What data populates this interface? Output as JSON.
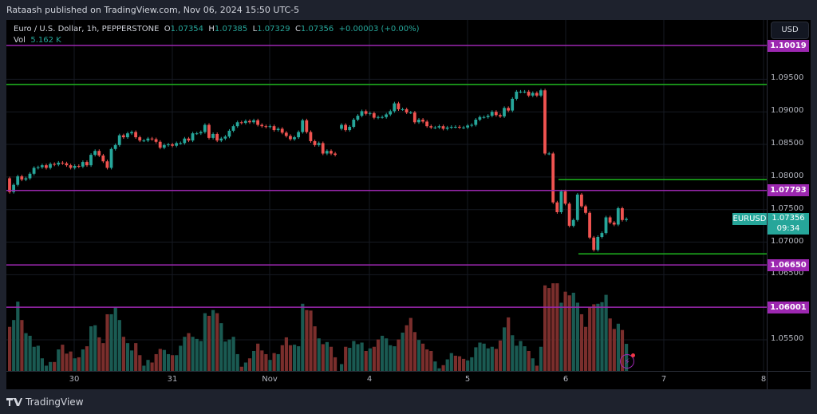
{
  "header": {
    "published": "Rataash published on TradingView.com, Nov 06, 2024 15:50 UTC-5"
  },
  "legend": {
    "symbol": "Euro / U.S. Dollar, 1h, PEPPERSTONE",
    "o_label": "O",
    "o": "1.07354",
    "h_label": "H",
    "h": "1.07385",
    "l_label": "L",
    "l": "1.07329",
    "c_label": "C",
    "c": "1.07356",
    "change": "+0.00003 (+0.00%)",
    "vol_label": "Vol",
    "vol": "5.162 K"
  },
  "currency_button": "USD",
  "price_axis": {
    "ticks": [
      "1.09500",
      "1.09000",
      "1.08500",
      "1.08000",
      "1.07500",
      "1.07000",
      "1.06500",
      "1.05500"
    ]
  },
  "levels": {
    "purple": [
      {
        "price": 1.10019,
        "label": "1.10019"
      },
      {
        "price": 1.07793,
        "label": "1.07793"
      },
      {
        "price": 1.0665,
        "label": "1.06650"
      },
      {
        "price": 1.06001,
        "label": "1.06001"
      }
    ],
    "green": [
      {
        "price": 1.0942,
        "from_date": "start"
      },
      {
        "price": 1.0796,
        "from_date": "Nov 5 late"
      },
      {
        "price": 1.0682,
        "from_date": "Nov 6"
      }
    ]
  },
  "current": {
    "symbol": "EURUSD",
    "price": "1.07356",
    "countdown": "09:34"
  },
  "time_axis": {
    "labels": [
      "30",
      "31",
      "Nov",
      "4",
      "5",
      "6",
      "7",
      "8"
    ]
  },
  "colors": {
    "up": "#26a69a",
    "down": "#ef5350",
    "vol_up": "#1a5a52",
    "vol_down": "#7a2e2c",
    "purple": "#9c27b0",
    "green": "#1fb81f",
    "tag_purple": "#9c27b0"
  },
  "footer": {
    "brand": "TradingView"
  },
  "chart_data": {
    "type": "candlestick",
    "segments": [
      {
        "first_open": 1.0798,
        "closes": [
          1.0777,
          1.0788,
          1.0801,
          1.0796,
          1.0798,
          1.0805,
          1.0814,
          1.0815,
          1.0818,
          1.0814,
          1.082,
          1.0819,
          1.0822,
          1.0821,
          1.0818,
          1.0814,
          1.0817,
          1.0816,
          1.0823,
          1.0818,
          1.0834,
          1.084,
          1.0833,
          1.0824,
          1.0814,
          1.0843,
          1.0849,
          1.0864,
          1.0861,
          1.0867,
          1.0869,
          1.0861,
          1.0856,
          1.0856,
          1.0859,
          1.0858,
          1.0854,
          1.0845,
          1.0849,
          1.085,
          1.0848,
          1.0852,
          1.0852,
          1.0859,
          1.0856,
          1.0867,
          1.0867,
          1.0869,
          1.088,
          1.086,
          1.0866,
          1.0856,
          1.0859,
          1.0862,
          1.0871,
          1.0878,
          1.0884,
          1.0883,
          1.0886,
          1.0884,
          1.0887,
          1.088,
          1.0878,
          1.0877,
          1.0878,
          1.0872,
          1.0874,
          1.0868,
          1.0863,
          1.0858,
          1.0861,
          1.0869,
          1.0887,
          1.0869,
          1.0855,
          1.0849,
          1.0852,
          1.0836,
          1.084,
          1.0836,
          1.0834
        ],
        "volumes_k": [
          8.4,
          9.7,
          13.2,
          9.7,
          7.2,
          6.7,
          4.6,
          4.8,
          2.4,
          1.0,
          1.7,
          1.7,
          4.1,
          5.0,
          3.3,
          3.7,
          2.4,
          2.6,
          4.1,
          4.7,
          8.5,
          8.7,
          6.4,
          5.3,
          10.8,
          10.8,
          12.2,
          9.7,
          6.5,
          5.3,
          3.9,
          5.3,
          3.0,
          1.0,
          2.1,
          1.6,
          3.2,
          4.2,
          4.0,
          3.2,
          3.0,
          3.0,
          4.8,
          6.5,
          7.2,
          6.5,
          6.1,
          5.7,
          11.0,
          10.5,
          11.6,
          11.0,
          9.1,
          5.6,
          6.0,
          6.5,
          3.2,
          0.8,
          1.6,
          2.4,
          3.8,
          5.2,
          3.9,
          3.2,
          2.1,
          3.4,
          3.2,
          4.9,
          6.4,
          4.9,
          5.0,
          4.7,
          12.8,
          11.6,
          11.5,
          8.5,
          6.2,
          5.1,
          5.5,
          4.6,
          2.6
        ],
        "volume_dir": "RGGRGGGGGGGRGRRRGRGRGGRRRGGGRGGRRGGRRRGGRGGGRGGGGRGRGGGGGRGRGRRRGRGRRRGGGRRRGRGRR"
      },
      {
        "first_open": 1.0874,
        "closes": [
          1.088,
          1.0872,
          1.0877,
          1.0888,
          1.0894,
          1.0901,
          1.0897,
          1.0898,
          1.0891,
          1.0892,
          1.0892,
          1.0896,
          1.0901,
          1.0913,
          1.0904,
          1.0904,
          1.0899,
          1.0899,
          1.0884,
          1.0888,
          1.0885,
          1.0878,
          1.0876,
          1.0876,
          1.0878,
          1.0874,
          1.0876,
          1.0877,
          1.0877,
          1.0876,
          1.0876,
          1.0879,
          1.088,
          1.0888,
          1.0892,
          1.0892,
          1.0894,
          1.09,
          1.0895,
          1.0893,
          1.0906,
          1.0902,
          1.092,
          1.0931,
          1.0931,
          1.0931,
          1.0925,
          1.0929,
          1.0925,
          1.0933,
          1.0836,
          1.0836,
          1.0761,
          1.0746,
          1.0778,
          1.0759,
          1.0725,
          1.0734,
          1.0773,
          1.0755,
          1.0745,
          1.0707,
          1.0688,
          1.0708,
          1.0714,
          1.0738,
          1.073,
          1.0727,
          1.0752,
          1.0734,
          1.07356
        ],
        "volumes_k": [
          1.3,
          4.6,
          4.4,
          5.7,
          5.1,
          5.4,
          3.8,
          4.3,
          4.6,
          6.0,
          6.7,
          6.2,
          4.9,
          4.7,
          6.0,
          7.3,
          8.7,
          10.1,
          7.4,
          5.9,
          5.2,
          4.1,
          3.8,
          1.8,
          0.5,
          1.1,
          2.2,
          3.4,
          2.9,
          2.8,
          2.3,
          2.0,
          2.6,
          4.5,
          5.4,
          5.2,
          4.3,
          4.6,
          4.2,
          5.8,
          8.3,
          10.2,
          6.8,
          4.8,
          5.7,
          4.7,
          3.8,
          2.4,
          1.0,
          4.6,
          16.3,
          15.8,
          16.7,
          16.7,
          13.0,
          15.1,
          14.4,
          14.9,
          13.0,
          10.8,
          8.4,
          12.1,
          12.7,
          12.8,
          13.1,
          14.5,
          10.0,
          8.0,
          9.0,
          7.8,
          5.162
        ],
        "volume_dir": "GRGGGGRGRRGGGGRGRRRGRRRGGRGGRRRGGGGGGGRRGRGGGGRGRGRRRRGRRGGRRRRGGGRRGRG"
      }
    ]
  }
}
